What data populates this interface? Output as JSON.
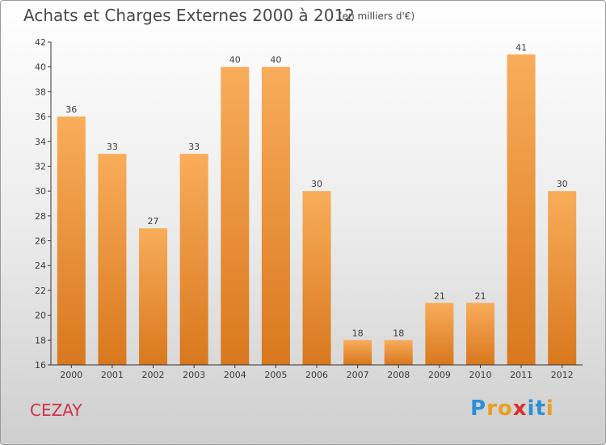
{
  "title": "Achats et Charges Externes 2000 à 2012",
  "subtitle": "(en milliers d'€)",
  "city": "CEZAY",
  "logo": {
    "letters": [
      "P",
      "r",
      "o",
      "x",
      "i",
      "t",
      "i"
    ],
    "colors": [
      "#2c8fd6",
      "#e8a020",
      "#e8a020",
      "#d83030",
      "#2c8fd6",
      "#2c8fd6",
      "#e8a020"
    ]
  },
  "colors": {
    "bar_top": "#f9ad5a",
    "bar_bottom": "#d9781e",
    "label": "#3a3a3a",
    "axis": "#333333"
  },
  "chart_data": {
    "type": "bar",
    "categories": [
      "2000",
      "2001",
      "2002",
      "2003",
      "2004",
      "2005",
      "2006",
      "2007",
      "2008",
      "2009",
      "2010",
      "2011",
      "2012"
    ],
    "values": [
      36,
      33,
      27,
      33,
      40,
      40,
      30,
      18,
      18,
      21,
      21,
      41,
      30
    ],
    "ylim": [
      16,
      42
    ],
    "yticks": [
      16,
      18,
      20,
      22,
      24,
      26,
      28,
      30,
      32,
      34,
      36,
      38,
      40,
      42
    ],
    "data_labels": [
      "36",
      "33",
      "27",
      "33",
      "40",
      "40",
      "30",
      "18",
      "18",
      "21",
      "21",
      "41",
      "30"
    ],
    "grid": false
  }
}
